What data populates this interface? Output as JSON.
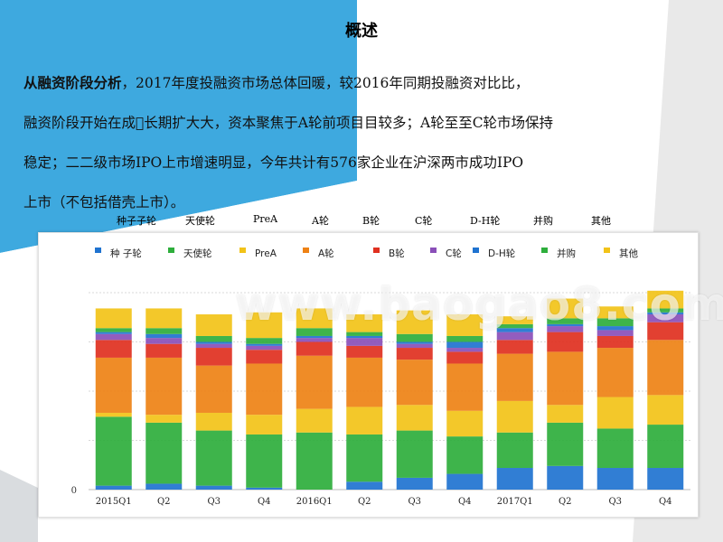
{
  "page": {
    "title": "概述",
    "paragraph": {
      "lead": "从融资阶段分析",
      "line1_rest": "，2017年度投融资市场总体回暖，较2016年同期投融资对比比，",
      "line2": "融资阶段开始在成\u0000长期扩大大，资本聚焦于A轮前项目目较多；A轮至至C轮市场保持",
      "line3": "稳定；二二级市场IPO上市增速明显，今年共计有576家企业在沪深两市成功IPO",
      "line4": "上市（不包括借壳上市）。"
    },
    "top_labels": [
      "种子子轮",
      "天使轮",
      "PreA",
      "A轮",
      "B轮",
      "C轮",
      "D-H轮",
      "并购",
      "其他"
    ],
    "watermark": "www.baogao8.com"
  },
  "chart_data": {
    "type": "bar",
    "stacked": true,
    "categories": [
      "2015Q1",
      "Q2",
      "Q3",
      "Q4",
      "2016Q1",
      "Q2",
      "Q3",
      "Q4",
      "2017Q1",
      "Q2",
      "Q3",
      "Q4"
    ],
    "y_tick_labels": [
      "0"
    ],
    "ylim": [
      0,
      100
    ],
    "grid": true,
    "legend_position": "top",
    "series": [
      {
        "name": "种 子轮",
        "color": "#1f73d0",
        "values": [
          2,
          3,
          2,
          1,
          0,
          4,
          6,
          8,
          11,
          12,
          11,
          11
        ]
      },
      {
        "name": "天使轮",
        "color": "#2eae3c",
        "values": [
          35,
          31,
          28,
          27,
          29,
          24,
          24,
          19,
          18,
          22,
          20,
          22
        ]
      },
      {
        "name": "PreA",
        "color": "#f2c318",
        "values": [
          2,
          4,
          9,
          10,
          12,
          14,
          13,
          13,
          16,
          9,
          16,
          15
        ]
      },
      {
        "name": "A轮",
        "color": "#ee8215",
        "values": [
          28,
          29,
          24,
          26,
          27,
          25,
          23,
          24,
          24,
          27,
          25,
          28
        ]
      },
      {
        "name": "B轮",
        "color": "#e03020",
        "values": [
          9,
          7,
          9,
          7,
          7,
          6,
          6,
          6,
          7,
          10,
          6,
          9
        ]
      },
      {
        "name": "C轮",
        "color": "#8a4fb8",
        "values": [
          3,
          3,
          2,
          2,
          2,
          4,
          2,
          2,
          4,
          3,
          3,
          4
        ]
      },
      {
        "name": "D-H轮",
        "color": "#1f73d0",
        "values": [
          1,
          2,
          1,
          1,
          1,
          1,
          1,
          3,
          2,
          1,
          2,
          1
        ]
      },
      {
        "name": "并购",
        "color": "#2eae3c",
        "values": [
          2,
          3,
          3,
          3,
          4,
          2,
          4,
          3,
          2,
          3,
          4,
          2
        ]
      },
      {
        "name": "其他",
        "color": "#f2c318",
        "values": [
          10,
          10,
          11,
          13,
          10,
          9,
          12,
          11,
          4,
          10,
          6,
          9
        ]
      }
    ]
  }
}
